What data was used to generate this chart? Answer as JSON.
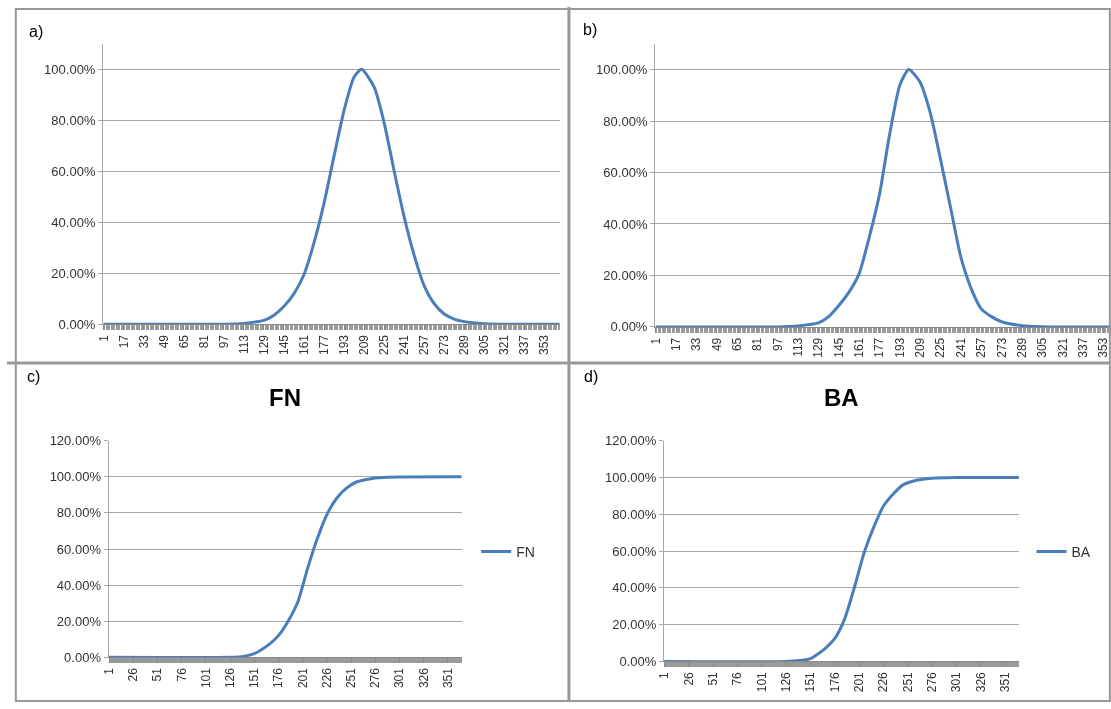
{
  "chart_data": [
    {
      "type": "line",
      "annotations": [
        "a)"
      ],
      "x": [
        1,
        97,
        113,
        121,
        129,
        137,
        145,
        153,
        161,
        169,
        177,
        185,
        193,
        201,
        207,
        217,
        225,
        233,
        241,
        249,
        257,
        265,
        273,
        281,
        289,
        305,
        321,
        365
      ],
      "series": [
        {
          "color": "#4a7ebb",
          "values": [
            0,
            0,
            0.3,
            0.8,
            1.5,
            3.5,
            7,
            12,
            19.5,
            32,
            47.5,
            66,
            84,
            97,
            100,
            93,
            79,
            60,
            42,
            27,
            15,
            8,
            4,
            2,
            1,
            0.2,
            0,
            0
          ]
        }
      ],
      "xlim": [
        0.5,
        365.5
      ],
      "xticks": [
        1,
        17,
        33,
        49,
        65,
        81,
        97,
        113,
        129,
        145,
        161,
        177,
        193,
        209,
        225,
        241,
        257,
        273,
        289,
        305,
        321,
        337,
        353
      ],
      "ylim": [
        0,
        110
      ],
      "yticks": [
        {
          "value": 0,
          "label": "0.00%"
        },
        {
          "value": 20,
          "label": "20.00%"
        },
        {
          "value": 40,
          "label": "40.00%"
        },
        {
          "value": 60,
          "label": "60.00%"
        },
        {
          "value": 80,
          "label": "80.00%"
        },
        {
          "value": 100,
          "label": "100.00%"
        }
      ],
      "grid": "y"
    },
    {
      "type": "line",
      "annotations": [
        "b)"
      ],
      "x": [
        1,
        97,
        113,
        121,
        129,
        137,
        145,
        153,
        161,
        169,
        177,
        185,
        193,
        200,
        209,
        217,
        225,
        233,
        241,
        249,
        257,
        265,
        273,
        289,
        305,
        321,
        359
      ],
      "series": [
        {
          "color": "#4a7ebb",
          "values": [
            0,
            0,
            0.4,
            0.9,
            1.6,
            4,
            8.3,
            13.5,
            20.7,
            35,
            51.6,
            75,
            94,
            100,
            95,
            83,
            65,
            46,
            27,
            15,
            7,
            4,
            2,
            0.5,
            0.1,
            0,
            0
          ]
        }
      ],
      "xlim": [
        0.5,
        359
      ],
      "xticks": [
        1,
        17,
        33,
        49,
        65,
        81,
        97,
        113,
        129,
        145,
        161,
        177,
        193,
        209,
        225,
        241,
        257,
        273,
        289,
        305,
        321,
        337,
        353
      ],
      "ylim": [
        0,
        110
      ],
      "yticks": [
        {
          "value": 0,
          "label": "0.00%"
        },
        {
          "value": 20,
          "label": "20.00%"
        },
        {
          "value": 40,
          "label": "40.00%"
        },
        {
          "value": 60,
          "label": "60.00%"
        },
        {
          "value": 80,
          "label": "80.00%"
        },
        {
          "value": 100,
          "label": "100.00%"
        }
      ],
      "grid": "y"
    },
    {
      "type": "line",
      "title": "FN",
      "annotations": [
        "c)"
      ],
      "x": [
        1,
        126,
        140,
        151,
        166,
        176,
        186,
        196,
        206,
        216,
        226,
        236,
        246,
        256,
        276,
        301,
        365
      ],
      "series": [
        {
          "name": "FN",
          "color": "#4a7ebb",
          "values": [
            0,
            0,
            0.5,
            2,
            7,
            12,
            20,
            30.6,
            49,
            65.5,
            79,
            88,
            93.6,
            97,
            99.4,
            99.9,
            100
          ]
        }
      ],
      "xlim": [
        0.5,
        365.5
      ],
      "xticks": [
        1,
        26,
        51,
        76,
        101,
        126,
        151,
        176,
        201,
        226,
        251,
        276,
        301,
        326,
        351
      ],
      "ylim": [
        0,
        120
      ],
      "yticks": [
        {
          "value": 0,
          "label": "0.00%"
        },
        {
          "value": 20,
          "label": "20.00%"
        },
        {
          "value": 40,
          "label": "40.00%"
        },
        {
          "value": 60,
          "label": "60.00%"
        },
        {
          "value": 80,
          "label": "80.00%"
        },
        {
          "value": 100,
          "label": "100.00%"
        },
        {
          "value": 120,
          "label": "120.00%"
        }
      ],
      "grid": "y",
      "legend": "right"
    },
    {
      "type": "line",
      "title": "BA",
      "annotations": [
        "d)"
      ],
      "x": [
        1,
        126,
        140,
        151,
        166,
        176,
        186,
        196,
        206,
        216,
        226,
        236,
        246,
        256,
        276,
        301,
        365
      ],
      "series": [
        {
          "name": "BA",
          "color": "#4a7ebb",
          "values": [
            0,
            0,
            0.5,
            1.5,
            7,
            12.5,
            23,
            40,
            59,
            73,
            84.5,
            91,
            96,
            98,
            99.6,
            100,
            100
          ]
        }
      ],
      "xlim": [
        0.5,
        365.5
      ],
      "xticks": [
        1,
        26,
        51,
        76,
        101,
        126,
        151,
        176,
        201,
        226,
        251,
        276,
        301,
        326,
        351
      ],
      "ylim": [
        0,
        120
      ],
      "yticks": [
        {
          "value": 0,
          "label": "0.00%"
        },
        {
          "value": 20,
          "label": "20.00%"
        },
        {
          "value": 40,
          "label": "40.00%"
        },
        {
          "value": 60,
          "label": "60.00%"
        },
        {
          "value": 80,
          "label": "80.00%"
        },
        {
          "value": 100,
          "label": "100.00%"
        },
        {
          "value": 120,
          "label": "120.00%"
        }
      ],
      "grid": "y",
      "legend": "right"
    }
  ]
}
